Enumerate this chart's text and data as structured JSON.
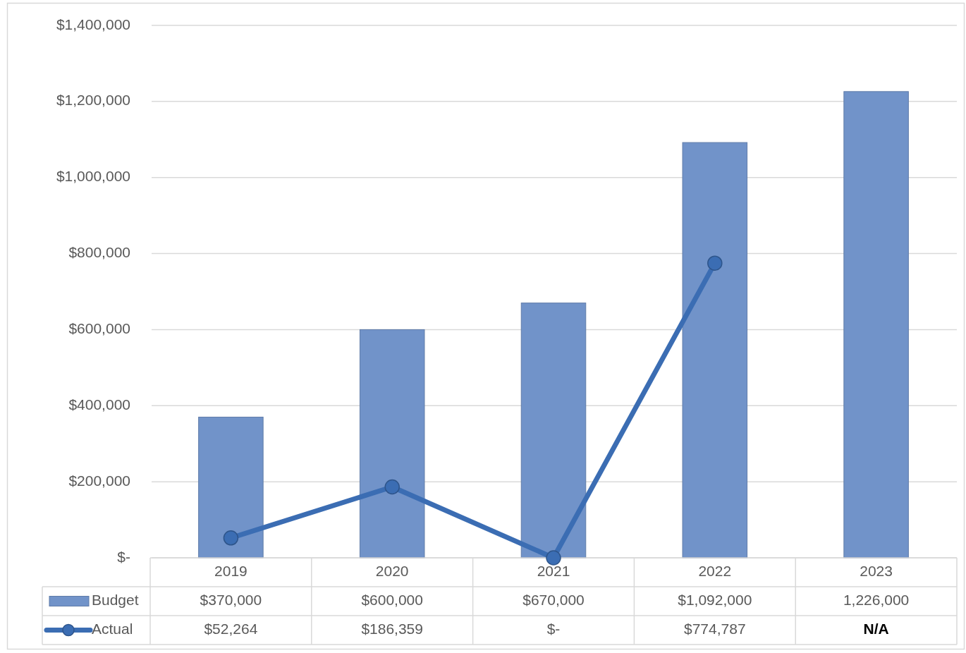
{
  "chart_data": {
    "type": "bar",
    "categories": [
      "2019",
      "2020",
      "2021",
      "2022",
      "2023"
    ],
    "series": [
      {
        "name": "Budget",
        "color": "#7193c9",
        "values": [
          370000,
          600000,
          670000,
          1092000,
          1226000
        ],
        "value_labels": [
          "$370,000",
          "$600,000",
          "$670,000",
          "$1,092,000",
          "1,226,000"
        ]
      },
      {
        "name": "Actual",
        "type": "line",
        "color": "#3b6db3",
        "values": [
          52264,
          186359,
          0,
          774787,
          null
        ],
        "value_labels": [
          "$52,264",
          "$186,359",
          "$-",
          "$774,787",
          "N/A"
        ]
      }
    ],
    "ylim": [
      0,
      1400000
    ],
    "yticks": [
      {
        "value": 0,
        "label": "$-"
      },
      {
        "value": 200000,
        "label": "$200,000"
      },
      {
        "value": 400000,
        "label": "$400,000"
      },
      {
        "value": 600000,
        "label": "$600,000"
      },
      {
        "value": 800000,
        "label": "$800,000"
      },
      {
        "value": 1000000,
        "label": "$1,000,000"
      },
      {
        "value": 1200000,
        "label": "$1,200,000"
      },
      {
        "value": 1400000,
        "label": "$1,400,000"
      }
    ],
    "grid": "y",
    "legend": "bottom",
    "marker": "circle"
  }
}
